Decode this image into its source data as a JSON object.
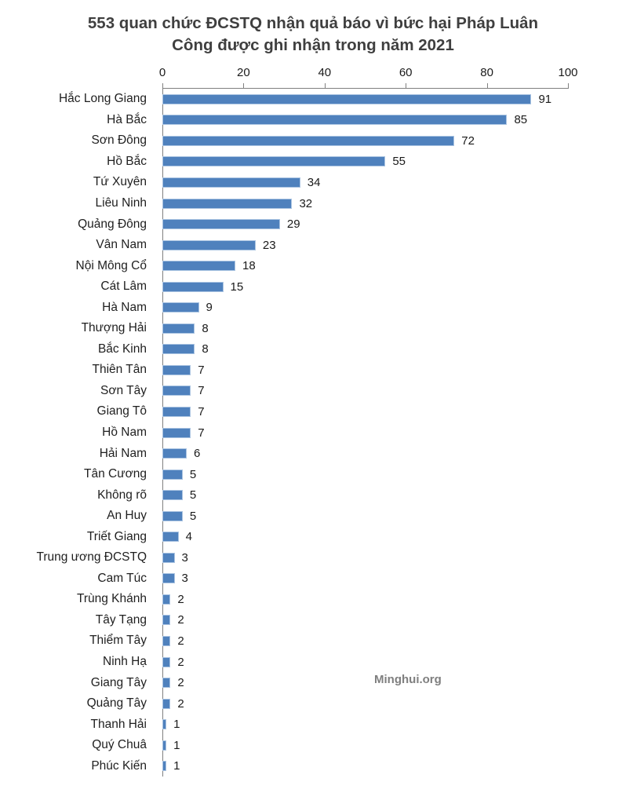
{
  "title_lines": [
    "553 quan chức ĐCSTQ nhận quả báo vì bức hại Pháp Luân",
    "Công được ghi nhận trong năm 2021"
  ],
  "watermark": "Minghui.org",
  "colors": {
    "bar_fill": "#4f81bd",
    "bar_border": "#a9c3e1",
    "axis_line": "#808080",
    "title_text": "#3f3f3f",
    "label_text": "#1f1f1f",
    "watermark_text": "#7f7f7f",
    "background": "#ffffff"
  },
  "chart_data": {
    "type": "bar",
    "orientation": "horizontal",
    "title": "553 quan chức ĐCSTQ nhận quả báo vì bức hại Pháp Luân Công được ghi nhận trong năm 2021",
    "xlabel": "",
    "ylabel": "",
    "xlim": [
      0,
      100
    ],
    "x_ticks": [
      0,
      20,
      40,
      60,
      80,
      100
    ],
    "grid": false,
    "legend": false,
    "value_labels": true,
    "categories": [
      "Hắc Long Giang",
      "Hà Bắc",
      "Sơn Đông",
      "Hồ Bắc",
      "Tứ Xuyên",
      "Liêu Ninh",
      "Quảng Đông",
      "Vân Nam",
      "Nội Mông Cổ",
      "Cát Lâm",
      "Hà Nam",
      "Thượng Hải",
      "Bắc Kinh",
      "Thiên Tân",
      "Sơn Tây",
      "Giang Tô",
      "Hồ Nam",
      "Hải Nam",
      "Tân Cương",
      "Không rõ",
      "An Huy",
      "Triết Giang",
      "Trung ương ĐCSTQ",
      "Cam Túc",
      "Trùng Khánh",
      "Tây Tạng",
      "Thiểm Tây",
      "Ninh Hạ",
      "Giang Tây",
      "Quảng Tây",
      "Thanh Hải",
      "Quý Chuâ",
      "Phúc Kiến"
    ],
    "values": [
      91,
      85,
      72,
      55,
      34,
      32,
      29,
      23,
      18,
      15,
      9,
      8,
      8,
      7,
      7,
      7,
      7,
      6,
      5,
      5,
      5,
      4,
      3,
      3,
      2,
      2,
      2,
      2,
      2,
      2,
      1,
      1,
      1
    ]
  }
}
